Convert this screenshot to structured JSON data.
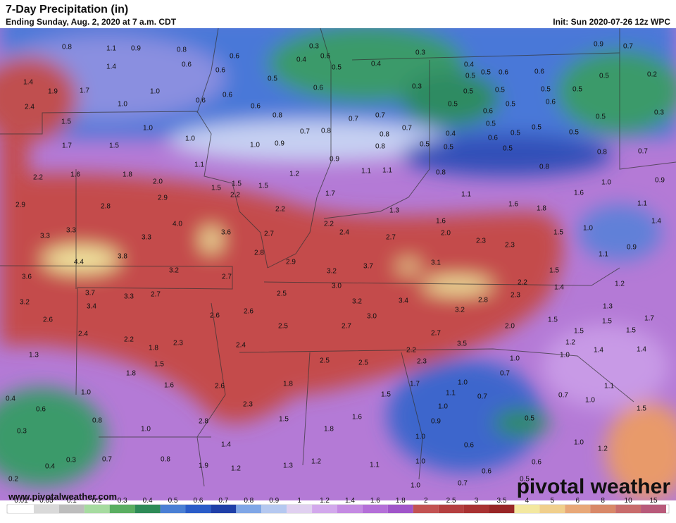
{
  "header": {
    "title": "7-Day Precipitation (in)",
    "subtitle": "Ending Sunday, Aug. 2, 2020 at 7 a.m. CDT",
    "init": "Init: Sun 2020-07-26 12z WPC"
  },
  "footer": {
    "website": "www.pivotalweather.com",
    "logo": "pivotal weather"
  },
  "map_labels": [
    "0.8",
    "1.1",
    "0.9",
    "0.8",
    "0.6",
    "0.6",
    "0.6",
    "1.4",
    "1.4",
    "1.9",
    "1.7",
    "1.0",
    "1.0",
    "2.4",
    "0.6",
    "0.6",
    "0.5",
    "0.3",
    "0.4",
    "0.6",
    "0.5",
    "0.4",
    "0.3",
    "0.6",
    "0.6",
    "0.8",
    "0.3",
    "0.4",
    "0.5",
    "0.5",
    "0.6",
    "0.6",
    "0.5",
    "0.5",
    "0.5",
    "0.6",
    "0.5",
    "0.6",
    "0.5",
    "0.5",
    "0.9",
    "0.7",
    "0.5",
    "0.2",
    "0.3",
    "0.5",
    "1.5",
    "1.0",
    "1.0",
    "1.0",
    "0.9",
    "0.7",
    "0.8",
    "0.7",
    "0.7",
    "0.8",
    "0.7",
    "0.8",
    "0.5",
    "0.5",
    "0.4",
    "0.5",
    "0.6",
    "0.5",
    "0.5",
    "0.5",
    "0.5",
    "0.8",
    "0.7",
    "1.7",
    "1.5",
    "1.1",
    "0.9",
    "1.6",
    "1.8",
    "2.2",
    "2.0",
    "1.5",
    "1.5",
    "1.5",
    "1.2",
    "1.1",
    "1.1",
    "0.8",
    "0.8",
    "1.0",
    "0.9",
    "2.9",
    "2.8",
    "2.9",
    "2.2",
    "2.2",
    "1.7",
    "1.3",
    "1.1",
    "1.6",
    "1.8",
    "1.6",
    "1.1",
    "1.4",
    "3.3",
    "3.3",
    "3.3",
    "4.0",
    "3.6",
    "2.7",
    "2.2",
    "2.4",
    "2.7",
    "1.6",
    "2.0",
    "2.3",
    "2.3",
    "1.5",
    "1.0",
    "1.1",
    "0.9",
    "4.4",
    "3.8",
    "3.6",
    "3.2",
    "2.7",
    "2.8",
    "2.9",
    "3.2",
    "3.7",
    "3.1",
    "1.5",
    "3.7",
    "3.3",
    "2.7",
    "3.2",
    "3.4",
    "2.5",
    "3.0",
    "3.2",
    "3.4",
    "3.0",
    "2.8",
    "3.2",
    "2.3",
    "2.2",
    "1.4",
    "1.2",
    "1.3",
    "2.6",
    "2.6",
    "2.6",
    "2.5",
    "2.7",
    "2.0",
    "1.5",
    "1.5",
    "1.5",
    "1.5",
    "1.7",
    "2.4",
    "2.2",
    "2.3",
    "2.7",
    "3.5",
    "2.4",
    "1.3",
    "1.8",
    "1.5",
    "1.2",
    "1.0",
    "1.4",
    "1.4",
    "2.2",
    "2.5",
    "2.5",
    "2.3",
    "1.0",
    "1.8",
    "1.6",
    "2.6",
    "1.8",
    "1.7",
    "0.7",
    "1.0",
    "1.1",
    "1.5",
    "0.7",
    "0.7",
    "1.1",
    "0.4",
    "1.0",
    "0.6",
    "2.3",
    "1.0",
    "1.0",
    "1.5",
    "0.8",
    "2.8",
    "1.5",
    "1.6",
    "0.9",
    "0.5",
    "1.0",
    "1.8",
    "0.3",
    "1.4",
    "0.6",
    "1.0",
    "1.0",
    "1.2",
    "0.7",
    "0.3",
    "0.8",
    "1.0",
    "0.6",
    "0.4",
    "1.9",
    "1.2",
    "1.3",
    "1.2",
    "1.1",
    "0.6",
    "0.7",
    "1.0",
    "0.2",
    "0.5"
  ],
  "legend": {
    "labels": [
      0.01,
      0.05,
      0.1,
      0.2,
      0.3,
      0.4,
      0.5,
      0.6,
      0.7,
      0.8,
      0.9,
      1,
      1.2,
      1.4,
      1.6,
      1.8,
      2,
      2.5,
      3,
      3.5,
      4,
      5,
      6,
      8,
      10,
      15
    ],
    "colors": [
      "#ffffff",
      "#d9d9d9",
      "#bdbdbd",
      "#a6dba0",
      "#5aae61",
      "#2e8b57",
      "#4a7fd4",
      "#2a5cc8",
      "#1f3fa8",
      "#7fa6e6",
      "#b5c8f0",
      "#e0d0f0",
      "#d2a8ec",
      "#c48ae2",
      "#b46fd8",
      "#a055c9",
      "#c25252",
      "#b43f3f",
      "#a83232",
      "#982626",
      "#f3e8a0",
      "#f0cf8c",
      "#e8a878",
      "#d88868",
      "#c86c6c",
      "#b85a7a"
    ]
  }
}
